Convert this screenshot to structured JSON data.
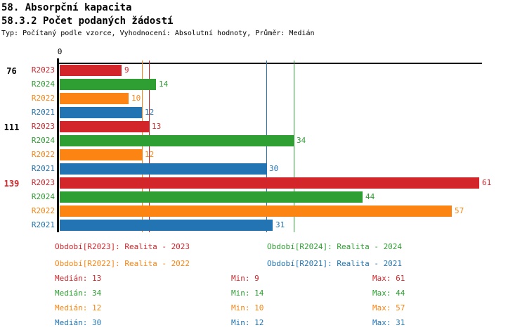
{
  "header": {
    "title": "58. Absorpční kapacita",
    "subtitle": "58.3.2 Počet podaných žádostí",
    "meta": "Typ: Počítaný podle vzorce, Vyhodnocení: Absolutní hodnoty, Průměr: Medián"
  },
  "colors": {
    "axis": "#000000",
    "r2023_red": "#d2262b",
    "r2024_green": "#2f9e33",
    "r2022_orange": "#fb8412",
    "r2021_blue": "#2274b2"
  },
  "chart_data": {
    "type": "bar",
    "orientation": "horizontal",
    "title": "58.3.2 Počet podaných žádostí",
    "x_axis": {
      "origin_label": "0",
      "min": 0,
      "approx_max": 61,
      "grid": false
    },
    "series_colors": {
      "R2023": "#d2262b",
      "R2024": "#2f9e33",
      "R2022": "#fb8412",
      "R2021": "#2274b2"
    },
    "groups": [
      {
        "label": "76",
        "label_color": "#000000",
        "bars": [
          {
            "series": "R2023",
            "value": 9
          },
          {
            "series": "R2024",
            "value": 14
          },
          {
            "series": "R2022",
            "value": 10
          },
          {
            "series": "R2021",
            "value": 12
          }
        ]
      },
      {
        "label": "111",
        "label_color": "#000000",
        "bars": [
          {
            "series": "R2023",
            "value": 13
          },
          {
            "series": "R2024",
            "value": 34
          },
          {
            "series": "R2022",
            "value": 12
          },
          {
            "series": "R2021",
            "value": 30
          }
        ]
      },
      {
        "label": "139",
        "label_color": "#d2262b",
        "bars": [
          {
            "series": "R2023",
            "value": 61
          },
          {
            "series": "R2024",
            "value": 44
          },
          {
            "series": "R2022",
            "value": 57
          },
          {
            "series": "R2021",
            "value": 31
          }
        ]
      }
    ],
    "median_lines": [
      {
        "series": "R2022",
        "value": 12
      },
      {
        "series": "R2023",
        "value": 13
      },
      {
        "series": "R2021",
        "value": 30
      },
      {
        "series": "R2024",
        "value": 34
      }
    ]
  },
  "legend": {
    "items": [
      {
        "text": "Období[R2023]: Realita - 2023",
        "color": "#d2262b"
      },
      {
        "text": "Období[R2024]: Realita - 2024",
        "color": "#2f9e33"
      },
      {
        "text": "Období[R2022]: Realita - 2022",
        "color": "#fb8412"
      },
      {
        "text": "Období[R2021]: Realita - 2021",
        "color": "#2274b2"
      }
    ]
  },
  "stats": {
    "rows": [
      {
        "series": "R2023",
        "color": "#d2262b",
        "median": "Medián: 13",
        "min": "Min: 9",
        "max": "Max: 61"
      },
      {
        "series": "R2024",
        "color": "#2f9e33",
        "median": "Medián: 34",
        "min": "Min: 14",
        "max": "Max: 44"
      },
      {
        "series": "R2022",
        "color": "#fb8412",
        "median": "Medián: 12",
        "min": "Min: 10",
        "max": "Max: 57"
      },
      {
        "series": "R2021",
        "color": "#2274b2",
        "median": "Medián: 30",
        "min": "Min: 12",
        "max": "Max: 31"
      }
    ]
  }
}
